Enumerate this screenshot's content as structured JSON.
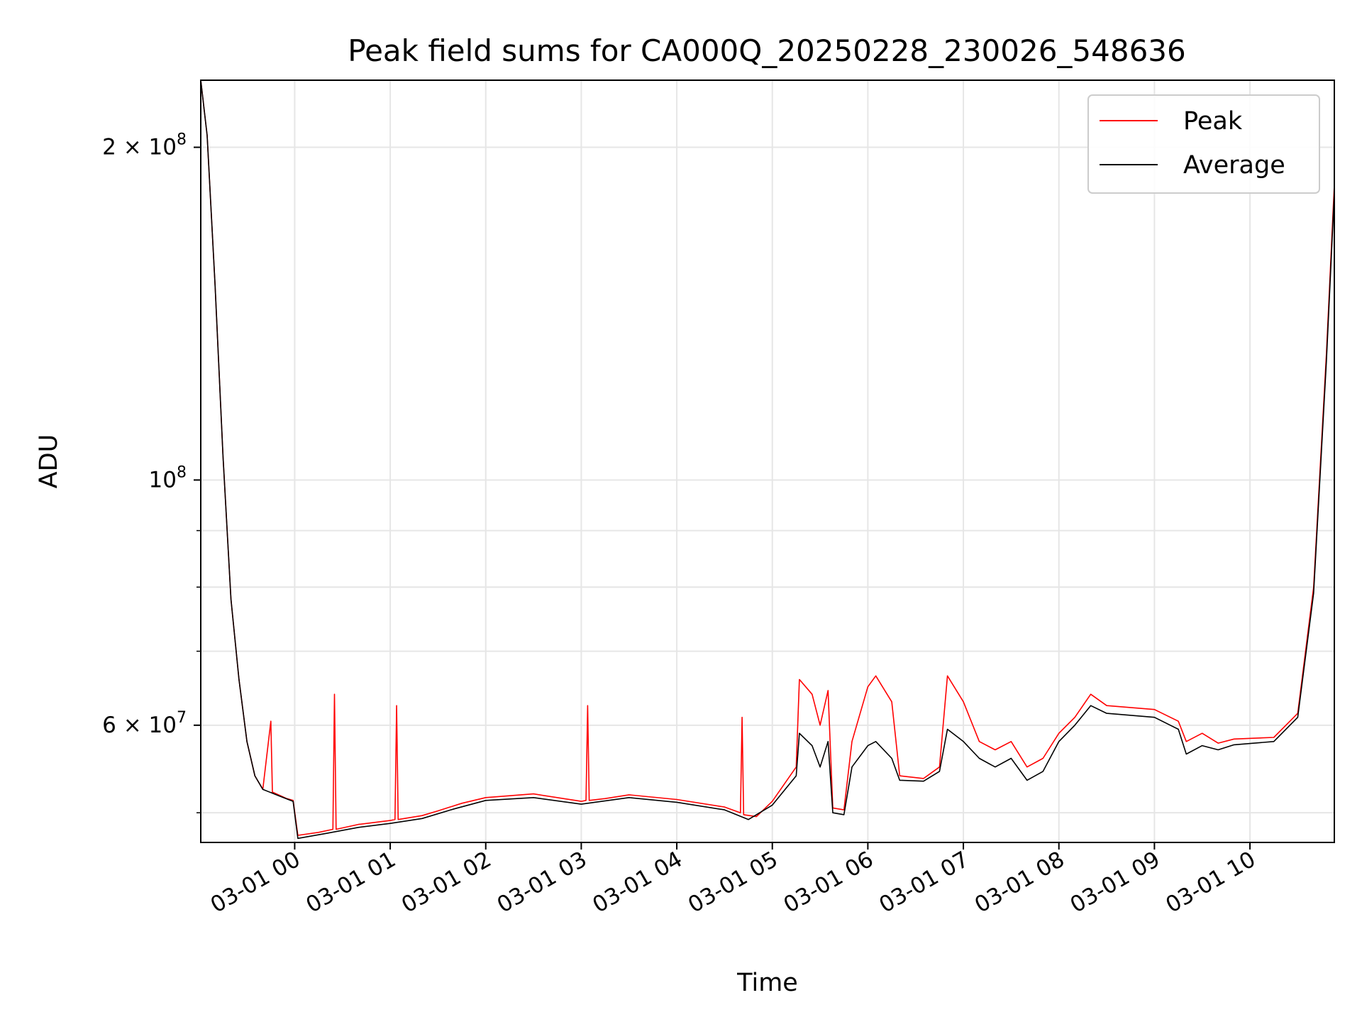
{
  "chart_data": {
    "type": "line",
    "title": "Peak field sums for CA000Q_20250228_230026_548636",
    "xlabel": "Time",
    "ylabel": "ADU",
    "yscale": "log",
    "ylim": [
      47000000,
      230000000
    ],
    "xlim": [
      "2025-02-28 23:01",
      "2025-03-01 10:53"
    ],
    "x_ticks": [
      {
        "t": "2025-03-01 00:00",
        "label": "03-01 00"
      },
      {
        "t": "2025-03-01 01:00",
        "label": "03-01 01"
      },
      {
        "t": "2025-03-01 02:00",
        "label": "03-01 02"
      },
      {
        "t": "2025-03-01 03:00",
        "label": "03-01 03"
      },
      {
        "t": "2025-03-01 04:00",
        "label": "03-01 04"
      },
      {
        "t": "2025-03-01 05:00",
        "label": "03-01 05"
      },
      {
        "t": "2025-03-01 06:00",
        "label": "03-01 06"
      },
      {
        "t": "2025-03-01 07:00",
        "label": "03-01 07"
      },
      {
        "t": "2025-03-01 08:00",
        "label": "03-01 08"
      },
      {
        "t": "2025-03-01 09:00",
        "label": "03-01 09"
      },
      {
        "t": "2025-03-01 10:00",
        "label": "03-01 10"
      }
    ],
    "y_major_ticks": [
      {
        "value": 200000000,
        "mantissa": "2",
        "exponent": "8"
      },
      {
        "value": 100000000,
        "mantissa": "",
        "exponent": "8"
      },
      {
        "value": 60000000,
        "mantissa": "6",
        "exponent": "7"
      }
    ],
    "y_minor_ticks": [
      50000000,
      70000000,
      80000000,
      90000000
    ],
    "grid": true,
    "legend_position": "top-right",
    "series": [
      {
        "name": "Peak",
        "color": "#ff0000",
        "points": [
          [
            "2025-02-28 23:01",
            230000000
          ],
          [
            "2025-02-28 23:05",
            205000000
          ],
          [
            "2025-02-28 23:10",
            150000000
          ],
          [
            "2025-02-28 23:15",
            105000000
          ],
          [
            "2025-02-28 23:20",
            78000000
          ],
          [
            "2025-02-28 23:25",
            66000000
          ],
          [
            "2025-02-28 23:30",
            58000000
          ],
          [
            "2025-02-28 23:35",
            54000000
          ],
          [
            "2025-02-28 23:40",
            52500000
          ],
          [
            "2025-02-28 23:45",
            60500000
          ],
          [
            "2025-02-28 23:46",
            52200000
          ],
          [
            "2025-02-28 23:55",
            51500000
          ],
          [
            "2025-02-28 23:59",
            51300000
          ],
          [
            "2025-03-01 00:02",
            47700000
          ],
          [
            "2025-03-01 00:15",
            48000000
          ],
          [
            "2025-03-01 00:24",
            48300000
          ],
          [
            "2025-03-01 00:25",
            64000000
          ],
          [
            "2025-03-01 00:26",
            48300000
          ],
          [
            "2025-03-01 00:40",
            48800000
          ],
          [
            "2025-03-01 01:00",
            49200000
          ],
          [
            "2025-03-01 01:03",
            49300000
          ],
          [
            "2025-03-01 01:04",
            62500000
          ],
          [
            "2025-03-01 01:05",
            49300000
          ],
          [
            "2025-03-01 01:20",
            49700000
          ],
          [
            "2025-03-01 01:30",
            50200000
          ],
          [
            "2025-03-01 01:45",
            51000000
          ],
          [
            "2025-03-01 02:00",
            51600000
          ],
          [
            "2025-03-01 02:30",
            52000000
          ],
          [
            "2025-03-01 03:00",
            51200000
          ],
          [
            "2025-03-01 03:03",
            51300000
          ],
          [
            "2025-03-01 03:04",
            62500000
          ],
          [
            "2025-03-01 03:05",
            51300000
          ],
          [
            "2025-03-01 03:15",
            51500000
          ],
          [
            "2025-03-01 03:30",
            51900000
          ],
          [
            "2025-03-01 04:00",
            51400000
          ],
          [
            "2025-03-01 04:30",
            50600000
          ],
          [
            "2025-03-01 04:40",
            50000000
          ],
          [
            "2025-03-01 04:41",
            61000000
          ],
          [
            "2025-03-01 04:42",
            49800000
          ],
          [
            "2025-03-01 04:50",
            49600000
          ],
          [
            "2025-03-01 05:00",
            51200000
          ],
          [
            "2025-03-01 05:15",
            55000000
          ],
          [
            "2025-03-01 05:17",
            66000000
          ],
          [
            "2025-03-01 05:25",
            64000000
          ],
          [
            "2025-03-01 05:30",
            60000000
          ],
          [
            "2025-03-01 05:35",
            64500000
          ],
          [
            "2025-03-01 05:38",
            50500000
          ],
          [
            "2025-03-01 05:45",
            50300000
          ],
          [
            "2025-03-01 05:50",
            58000000
          ],
          [
            "2025-03-01 06:00",
            65000000
          ],
          [
            "2025-03-01 06:05",
            66500000
          ],
          [
            "2025-03-01 06:15",
            63000000
          ],
          [
            "2025-03-01 06:20",
            54000000
          ],
          [
            "2025-03-01 06:35",
            53700000
          ],
          [
            "2025-03-01 06:45",
            55000000
          ],
          [
            "2025-03-01 06:50",
            66500000
          ],
          [
            "2025-03-01 07:00",
            63000000
          ],
          [
            "2025-03-01 07:10",
            58000000
          ],
          [
            "2025-03-01 07:20",
            57000000
          ],
          [
            "2025-03-01 07:30",
            58000000
          ],
          [
            "2025-03-01 07:40",
            55000000
          ],
          [
            "2025-03-01 07:50",
            56000000
          ],
          [
            "2025-03-01 08:00",
            59000000
          ],
          [
            "2025-03-01 08:10",
            61000000
          ],
          [
            "2025-03-01 08:20",
            64000000
          ],
          [
            "2025-03-01 08:30",
            62500000
          ],
          [
            "2025-03-01 09:00",
            62000000
          ],
          [
            "2025-03-01 09:15",
            60500000
          ],
          [
            "2025-03-01 09:20",
            58000000
          ],
          [
            "2025-03-01 09:30",
            59000000
          ],
          [
            "2025-03-01 09:40",
            57800000
          ],
          [
            "2025-03-01 09:50",
            58300000
          ],
          [
            "2025-03-01 10:15",
            58500000
          ],
          [
            "2025-03-01 10:30",
            61500000
          ],
          [
            "2025-03-01 10:40",
            80000000
          ],
          [
            "2025-03-01 10:48",
            130000000
          ],
          [
            "2025-03-01 10:53",
            185000000
          ]
        ]
      },
      {
        "name": "Average",
        "color": "#000000",
        "points": [
          [
            "2025-02-28 23:01",
            230000000
          ],
          [
            "2025-02-28 23:05",
            205000000
          ],
          [
            "2025-02-28 23:10",
            150000000
          ],
          [
            "2025-02-28 23:15",
            105000000
          ],
          [
            "2025-02-28 23:20",
            78000000
          ],
          [
            "2025-02-28 23:25",
            66000000
          ],
          [
            "2025-02-28 23:30",
            58000000
          ],
          [
            "2025-02-28 23:35",
            54000000
          ],
          [
            "2025-02-28 23:40",
            52500000
          ],
          [
            "2025-02-28 23:50",
            51800000
          ],
          [
            "2025-02-28 23:59",
            51200000
          ],
          [
            "2025-03-01 00:02",
            47400000
          ],
          [
            "2025-03-01 00:20",
            47900000
          ],
          [
            "2025-03-01 00:40",
            48500000
          ],
          [
            "2025-03-01 01:00",
            48900000
          ],
          [
            "2025-03-01 01:20",
            49400000
          ],
          [
            "2025-03-01 01:40",
            50400000
          ],
          [
            "2025-03-01 02:00",
            51300000
          ],
          [
            "2025-03-01 02:30",
            51600000
          ],
          [
            "2025-03-01 03:00",
            50900000
          ],
          [
            "2025-03-01 03:30",
            51600000
          ],
          [
            "2025-03-01 04:00",
            51100000
          ],
          [
            "2025-03-01 04:30",
            50300000
          ],
          [
            "2025-03-01 04:45",
            49300000
          ],
          [
            "2025-03-01 05:00",
            50800000
          ],
          [
            "2025-03-01 05:15",
            54000000
          ],
          [
            "2025-03-01 05:17",
            59000000
          ],
          [
            "2025-03-01 05:25",
            57500000
          ],
          [
            "2025-03-01 05:30",
            55000000
          ],
          [
            "2025-03-01 05:35",
            58000000
          ],
          [
            "2025-03-01 05:38",
            50000000
          ],
          [
            "2025-03-01 05:45",
            49800000
          ],
          [
            "2025-03-01 05:50",
            55000000
          ],
          [
            "2025-03-01 06:00",
            57500000
          ],
          [
            "2025-03-01 06:05",
            58000000
          ],
          [
            "2025-03-01 06:15",
            56000000
          ],
          [
            "2025-03-01 06:20",
            53500000
          ],
          [
            "2025-03-01 06:35",
            53400000
          ],
          [
            "2025-03-01 06:45",
            54500000
          ],
          [
            "2025-03-01 06:50",
            59500000
          ],
          [
            "2025-03-01 07:00",
            58000000
          ],
          [
            "2025-03-01 07:10",
            56000000
          ],
          [
            "2025-03-01 07:20",
            55000000
          ],
          [
            "2025-03-01 07:30",
            56000000
          ],
          [
            "2025-03-01 07:40",
            53500000
          ],
          [
            "2025-03-01 07:50",
            54500000
          ],
          [
            "2025-03-01 08:00",
            58000000
          ],
          [
            "2025-03-01 08:10",
            60000000
          ],
          [
            "2025-03-01 08:20",
            62500000
          ],
          [
            "2025-03-01 08:30",
            61500000
          ],
          [
            "2025-03-01 09:00",
            61000000
          ],
          [
            "2025-03-01 09:15",
            59500000
          ],
          [
            "2025-03-01 09:20",
            56500000
          ],
          [
            "2025-03-01 09:30",
            57500000
          ],
          [
            "2025-03-01 09:40",
            57000000
          ],
          [
            "2025-03-01 09:50",
            57600000
          ],
          [
            "2025-03-01 10:15",
            58000000
          ],
          [
            "2025-03-01 10:30",
            61000000
          ],
          [
            "2025-03-01 10:40",
            79000000
          ],
          [
            "2025-03-01 10:48",
            128000000
          ],
          [
            "2025-03-01 10:53",
            182000000
          ]
        ]
      }
    ]
  }
}
